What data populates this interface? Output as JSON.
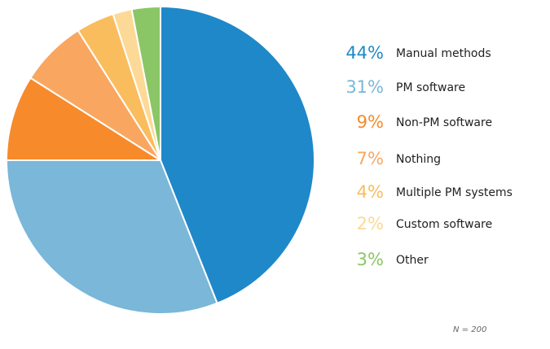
{
  "chart_data": {
    "type": "pie",
    "start_angle_deg": 0,
    "direction": "clockwise",
    "slices": [
      {
        "label": "Manual methods",
        "value": 44,
        "display": "44%",
        "color": "#1f88c9"
      },
      {
        "label": "PM software",
        "value": 31,
        "display": "31%",
        "color": "#7ab7d9"
      },
      {
        "label": "Non-PM software",
        "value": 9,
        "display": "9%",
        "color": "#f78a2b"
      },
      {
        "label": "Nothing",
        "value": 7,
        "display": "7%",
        "color": "#f9a760"
      },
      {
        "label": "Multiple PM systems",
        "value": 4,
        "display": "4%",
        "color": "#f9bd5d"
      },
      {
        "label": "Custom software",
        "value": 2,
        "display": "2%",
        "color": "#fcd996"
      },
      {
        "label": "Other",
        "value": 3,
        "display": "3%",
        "color": "#8ac665"
      }
    ],
    "note": "N = 200"
  }
}
